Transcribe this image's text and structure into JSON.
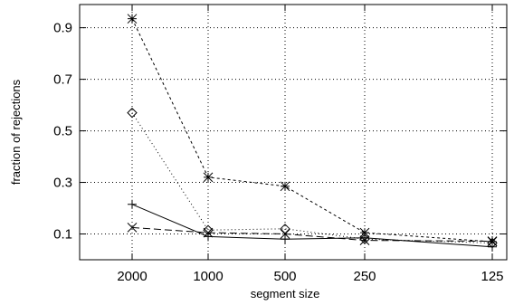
{
  "chart_data": {
    "type": "line",
    "xlabel": "segment size",
    "ylabel": "fraction of rejections",
    "categories": [
      "2000",
      "1000",
      "500",
      "250",
      "125"
    ],
    "y_ticks": [
      "0.1",
      "0.3",
      "0.5",
      "0.7",
      "0.9"
    ],
    "ylim": [
      0.0,
      0.99
    ],
    "grid": true,
    "legend": "none",
    "series": [
      {
        "marker": "star",
        "dash": "3,3",
        "values": [
          0.935,
          0.32,
          0.285,
          0.105,
          0.07
        ]
      },
      {
        "marker": "diamond",
        "dash": "1,3",
        "values": [
          0.57,
          0.115,
          0.12,
          0.08,
          0.065
        ]
      },
      {
        "marker": "plus",
        "dash": "",
        "values": [
          0.215,
          0.09,
          0.08,
          0.085,
          0.05
        ]
      },
      {
        "marker": "cross",
        "dash": "8,4",
        "values": [
          0.125,
          0.105,
          0.1,
          0.075,
          0.072
        ]
      }
    ]
  }
}
